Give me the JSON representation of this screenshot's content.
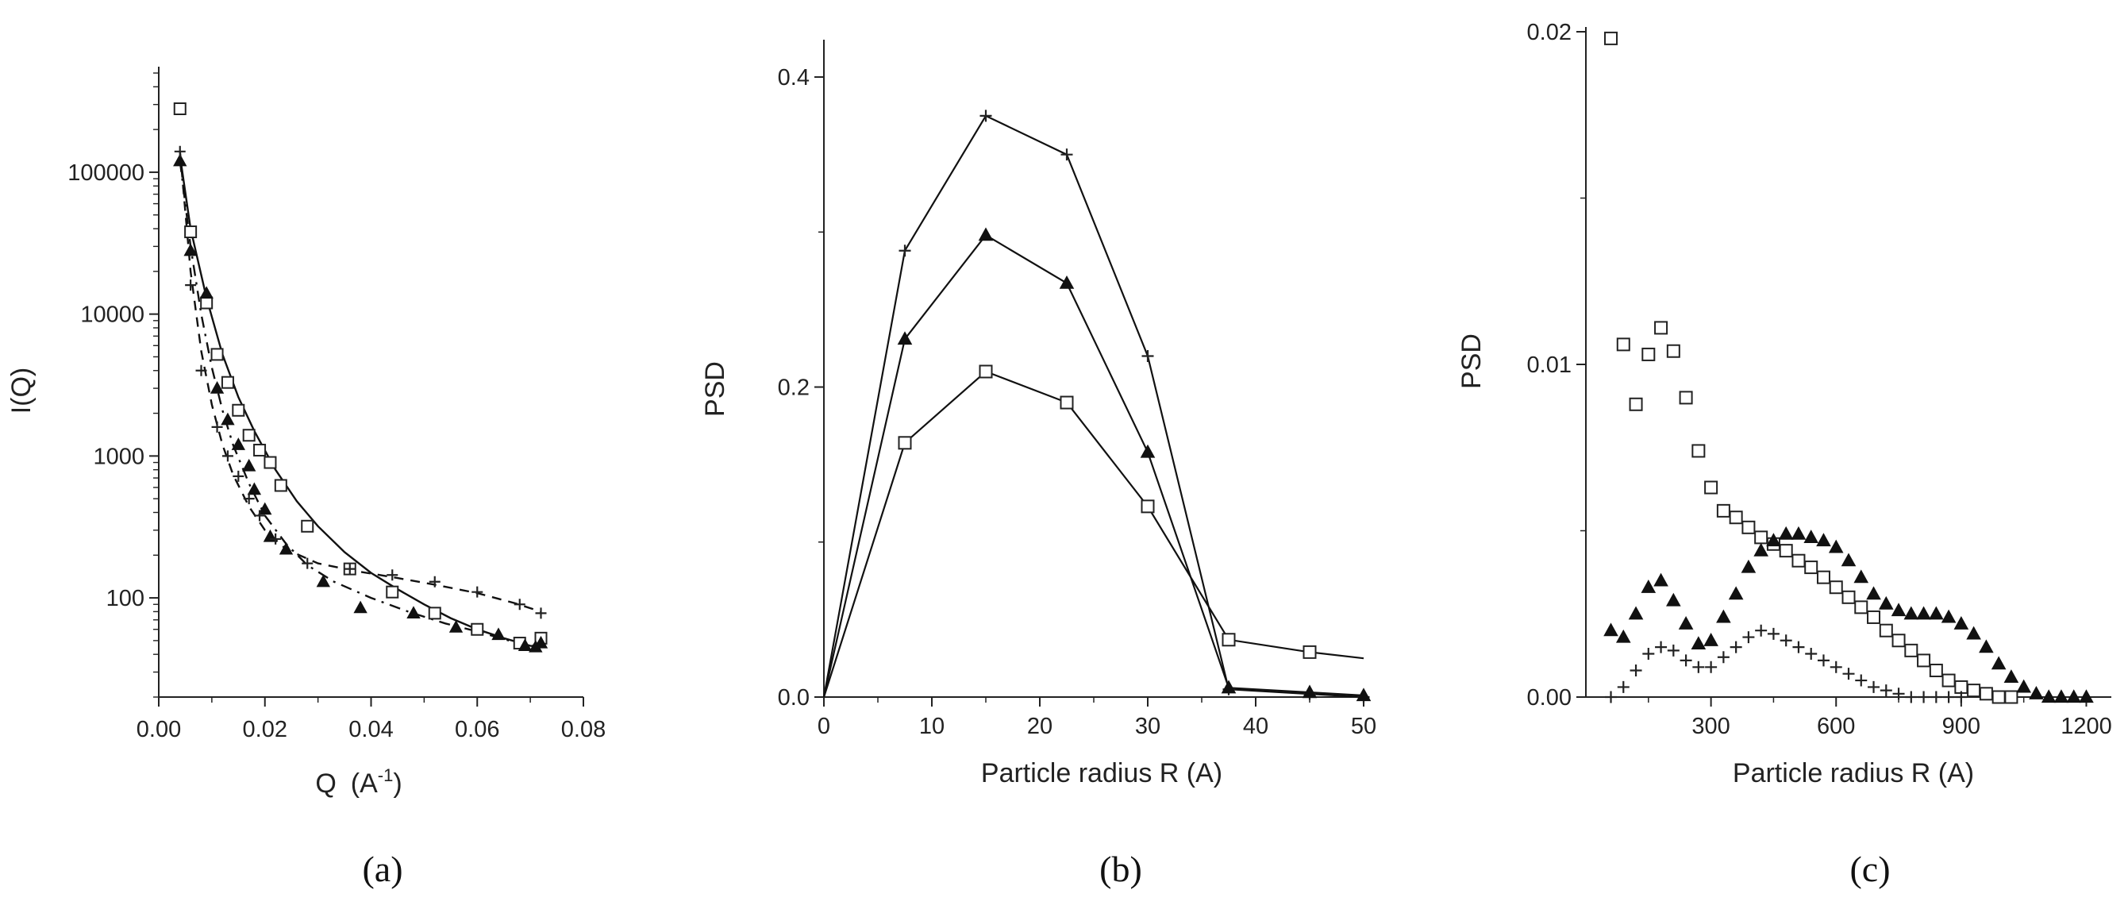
{
  "chart_data": [
    {
      "type": "scatter",
      "panel_caption": "(a)",
      "xlabel": "Q",
      "xlabel_unit": "(A",
      "xlabel_unit_exp": "-1",
      "xlabel_unit_close": ")",
      "ylabel": "I(Q)",
      "xlim": [
        0.0,
        0.08
      ],
      "ylim": [
        20,
        500000
      ],
      "y_scale": "log",
      "x_ticks": [
        "0.00",
        "0.02",
        "0.04",
        "0.06",
        "0.08"
      ],
      "y_ticks": [
        "100",
        "1000",
        "10000",
        "100000"
      ],
      "series": [
        {
          "marker": "open-square",
          "line": "solid",
          "points": [
            [
              0.004,
              280000
            ],
            [
              0.006,
              38000
            ],
            [
              0.009,
              12000
            ],
            [
              0.011,
              5200
            ],
            [
              0.013,
              3300
            ],
            [
              0.015,
              2100
            ],
            [
              0.017,
              1400
            ],
            [
              0.019,
              1100
            ],
            [
              0.021,
              900
            ],
            [
              0.023,
              620
            ],
            [
              0.028,
              320
            ],
            [
              0.036,
              160
            ],
            [
              0.044,
              110
            ],
            [
              0.052,
              78
            ],
            [
              0.06,
              60
            ],
            [
              0.068,
              48
            ],
            [
              0.072,
              52
            ]
          ],
          "curve": [
            [
              0.004,
              130000
            ],
            [
              0.006,
              40000
            ],
            [
              0.009,
              13000
            ],
            [
              0.012,
              5200
            ],
            [
              0.015,
              2600
            ],
            [
              0.018,
              1500
            ],
            [
              0.022,
              800
            ],
            [
              0.026,
              480
            ],
            [
              0.03,
              320
            ],
            [
              0.035,
              210
            ],
            [
              0.04,
              150
            ],
            [
              0.045,
              115
            ],
            [
              0.05,
              90
            ],
            [
              0.055,
              72
            ],
            [
              0.06,
              60
            ],
            [
              0.065,
              52
            ],
            [
              0.07,
              46
            ],
            [
              0.072,
              45
            ]
          ]
        },
        {
          "marker": "filled-triangle",
          "line": "dash-dot",
          "points": [
            [
              0.004,
              120000
            ],
            [
              0.006,
              28000
            ],
            [
              0.009,
              14000
            ],
            [
              0.011,
              3000
            ],
            [
              0.013,
              1800
            ],
            [
              0.015,
              1200
            ],
            [
              0.017,
              850
            ],
            [
              0.018,
              580
            ],
            [
              0.02,
              420
            ],
            [
              0.021,
              270
            ],
            [
              0.024,
              220
            ],
            [
              0.031,
              130
            ],
            [
              0.038,
              85
            ],
            [
              0.048,
              78
            ],
            [
              0.056,
              62
            ],
            [
              0.064,
              55
            ],
            [
              0.069,
              46
            ],
            [
              0.071,
              45
            ],
            [
              0.072,
              48
            ]
          ],
          "curve": [
            [
              0.004,
              120000
            ],
            [
              0.006,
              30000
            ],
            [
              0.008,
              10000
            ],
            [
              0.01,
              4200
            ],
            [
              0.012,
              2100
            ],
            [
              0.014,
              1200
            ],
            [
              0.017,
              640
            ],
            [
              0.02,
              380
            ],
            [
              0.024,
              240
            ],
            [
              0.028,
              170
            ],
            [
              0.033,
              130
            ],
            [
              0.04,
              100
            ],
            [
              0.047,
              80
            ],
            [
              0.054,
              66
            ],
            [
              0.06,
              58
            ],
            [
              0.066,
              50
            ],
            [
              0.072,
              45
            ]
          ]
        },
        {
          "marker": "plus",
          "line": "dashed",
          "points": [
            [
              0.004,
              140000
            ],
            [
              0.006,
              16000
            ],
            [
              0.008,
              4000
            ],
            [
              0.011,
              1600
            ],
            [
              0.013,
              1000
            ],
            [
              0.015,
              720
            ],
            [
              0.017,
              500
            ],
            [
              0.019,
              380
            ],
            [
              0.022,
              260
            ],
            [
              0.028,
              175
            ],
            [
              0.036,
              160
            ],
            [
              0.044,
              145
            ],
            [
              0.052,
              130
            ],
            [
              0.06,
              110
            ],
            [
              0.068,
              90
            ],
            [
              0.072,
              78
            ]
          ],
          "curve": [
            [
              0.004,
              140000
            ],
            [
              0.006,
              20000
            ],
            [
              0.008,
              5500
            ],
            [
              0.01,
              2300
            ],
            [
              0.012,
              1200
            ],
            [
              0.014,
              740
            ],
            [
              0.017,
              440
            ],
            [
              0.02,
              300
            ],
            [
              0.024,
              220
            ],
            [
              0.03,
              175
            ],
            [
              0.037,
              155
            ],
            [
              0.045,
              138
            ],
            [
              0.052,
              124
            ],
            [
              0.06,
              108
            ],
            [
              0.067,
              92
            ],
            [
              0.072,
              80
            ]
          ]
        }
      ]
    },
    {
      "type": "line",
      "panel_caption": "(b)",
      "xlabel": "Particle radius  R  (A)",
      "ylabel": "PSD",
      "xlim": [
        0,
        50
      ],
      "ylim": [
        0,
        0.42
      ],
      "x_ticks": [
        "0",
        "10",
        "20",
        "30",
        "40",
        "50"
      ],
      "y_ticks": [
        "0.0",
        "0.2",
        "0.4"
      ],
      "series": [
        {
          "marker": "plus",
          "points": [
            [
              0,
              0.0
            ],
            [
              7.5,
              0.288
            ],
            [
              15,
              0.375
            ],
            [
              22.5,
              0.35
            ],
            [
              30,
              0.22
            ],
            [
              37.5,
              0.005
            ],
            [
              45,
              0.002
            ],
            [
              50,
              0.0
            ]
          ]
        },
        {
          "marker": "filled-triangle",
          "points": [
            [
              0,
              0.0
            ],
            [
              7.5,
              0.231
            ],
            [
              15,
              0.298
            ],
            [
              22.5,
              0.267
            ],
            [
              30,
              0.158
            ],
            [
              37.5,
              0.006
            ],
            [
              45,
              0.003
            ],
            [
              50,
              0.001
            ]
          ]
        },
        {
          "marker": "open-square",
          "points": [
            [
              0,
              0.0
            ],
            [
              7.5,
              0.164
            ],
            [
              15,
              0.21
            ],
            [
              22.5,
              0.19
            ],
            [
              30,
              0.123
            ],
            [
              37.5,
              0.037
            ],
            [
              45,
              0.029
            ],
            [
              50,
              0.025
            ]
          ],
          "unmarked_end": true
        }
      ]
    },
    {
      "type": "scatter",
      "panel_caption": "(c)",
      "xlabel": "Particle radius  R  (A)",
      "ylabel": "PSD",
      "xlim": [
        0,
        1260
      ],
      "ylim": [
        0,
        0.02
      ],
      "x_ticks": [
        "300",
        "600",
        "900",
        "1200"
      ],
      "y_ticks": [
        "0.00",
        "0.01",
        "0.02"
      ],
      "series": [
        {
          "marker": "open-square",
          "points": [
            [
              60,
              0.0198
            ],
            [
              90,
              0.0106
            ],
            [
              120,
              0.0088
            ],
            [
              150,
              0.0103
            ],
            [
              180,
              0.0111
            ],
            [
              210,
              0.0104
            ],
            [
              240,
              0.009
            ],
            [
              270,
              0.0074
            ],
            [
              300,
              0.0063
            ],
            [
              330,
              0.0056
            ],
            [
              360,
              0.0054
            ],
            [
              390,
              0.0051
            ],
            [
              420,
              0.0048
            ],
            [
              450,
              0.0046
            ],
            [
              480,
              0.0044
            ],
            [
              510,
              0.0041
            ],
            [
              540,
              0.0039
            ],
            [
              570,
              0.0036
            ],
            [
              600,
              0.0033
            ],
            [
              630,
              0.003
            ],
            [
              660,
              0.0027
            ],
            [
              690,
              0.0024
            ],
            [
              720,
              0.002
            ],
            [
              750,
              0.0017
            ],
            [
              780,
              0.0014
            ],
            [
              810,
              0.0011
            ],
            [
              840,
              0.0008
            ],
            [
              870,
              0.0005
            ],
            [
              900,
              0.0003
            ],
            [
              930,
              0.0002
            ],
            [
              960,
              0.0001
            ],
            [
              990,
              0.0
            ],
            [
              1020,
              0.0
            ]
          ]
        },
        {
          "marker": "filled-triangle",
          "points": [
            [
              60,
              0.002
            ],
            [
              90,
              0.0018
            ],
            [
              120,
              0.0025
            ],
            [
              150,
              0.0033
            ],
            [
              180,
              0.0035
            ],
            [
              210,
              0.0029
            ],
            [
              240,
              0.0022
            ],
            [
              270,
              0.0016
            ],
            [
              300,
              0.0017
            ],
            [
              330,
              0.0024
            ],
            [
              360,
              0.0031
            ],
            [
              390,
              0.0039
            ],
            [
              420,
              0.0044
            ],
            [
              450,
              0.0047
            ],
            [
              480,
              0.0049
            ],
            [
              510,
              0.0049
            ],
            [
              540,
              0.0048
            ],
            [
              570,
              0.0047
            ],
            [
              600,
              0.0045
            ],
            [
              630,
              0.0041
            ],
            [
              660,
              0.0036
            ],
            [
              690,
              0.0031
            ],
            [
              720,
              0.0028
            ],
            [
              750,
              0.0026
            ],
            [
              780,
              0.0025
            ],
            [
              810,
              0.0025
            ],
            [
              840,
              0.0025
            ],
            [
              870,
              0.0024
            ],
            [
              900,
              0.0022
            ],
            [
              930,
              0.0019
            ],
            [
              960,
              0.0015
            ],
            [
              990,
              0.001
            ],
            [
              1020,
              0.0006
            ],
            [
              1050,
              0.0003
            ],
            [
              1080,
              0.0001
            ],
            [
              1110,
              0.0
            ],
            [
              1140,
              0.0
            ],
            [
              1170,
              0.0
            ],
            [
              1200,
              0.0
            ]
          ]
        },
        {
          "marker": "plus",
          "points": [
            [
              60,
              0.0
            ],
            [
              90,
              0.0003
            ],
            [
              120,
              0.0008
            ],
            [
              150,
              0.0013
            ],
            [
              180,
              0.0015
            ],
            [
              210,
              0.0014
            ],
            [
              240,
              0.0011
            ],
            [
              270,
              0.0009
            ],
            [
              300,
              0.0009
            ],
            [
              330,
              0.0012
            ],
            [
              360,
              0.0015
            ],
            [
              390,
              0.0018
            ],
            [
              420,
              0.002
            ],
            [
              450,
              0.0019
            ],
            [
              480,
              0.0017
            ],
            [
              510,
              0.0015
            ],
            [
              540,
              0.0013
            ],
            [
              570,
              0.0011
            ],
            [
              600,
              0.0009
            ],
            [
              630,
              0.0007
            ],
            [
              660,
              0.0005
            ],
            [
              690,
              0.0003
            ],
            [
              720,
              0.0002
            ],
            [
              750,
              0.0001
            ],
            [
              780,
              0.0
            ],
            [
              810,
              0.0
            ],
            [
              840,
              0.0
            ],
            [
              870,
              0.0
            ],
            [
              900,
              0.0
            ]
          ]
        }
      ]
    }
  ]
}
